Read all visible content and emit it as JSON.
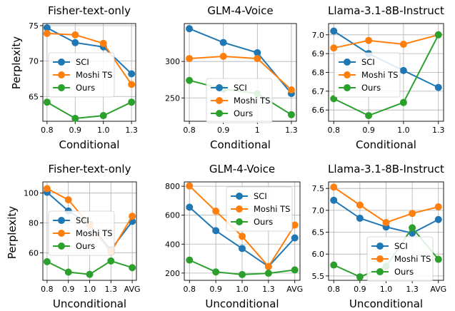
{
  "figure": {
    "ylabel": "Perplexity",
    "series_colors": {
      "SCI": "#1f77b4",
      "Moshi TS": "#ff7f0e",
      "Ours": "#2ca02c"
    }
  },
  "chart_data": [
    {
      "type": "line",
      "title": "Fisher-text-only",
      "xlabel": "Conditional",
      "ylabel": "Perplexity",
      "categories": [
        "0.8",
        "0.9",
        "1.0",
        "1.3"
      ],
      "ylim": [
        61.5,
        75.3
      ],
      "yticks": [
        {
          "v": 65,
          "label": "65"
        },
        {
          "v": 70,
          "label": "70"
        },
        {
          "v": 75,
          "label": "75"
        }
      ],
      "grid": true,
      "legend": "center-left",
      "series": [
        {
          "name": "SCI",
          "values": [
            74.7,
            72.6,
            72.0,
            68.2
          ]
        },
        {
          "name": "Moshi TS",
          "values": [
            73.9,
            73.7,
            72.5,
            66.7
          ]
        },
        {
          "name": "Ours",
          "values": [
            64.2,
            61.9,
            62.3,
            64.2
          ]
        }
      ]
    },
    {
      "type": "line",
      "title": "GLM-4-Voice",
      "xlabel": "Conditional",
      "ylabel": "",
      "categories": [
        "0.8",
        "0.9",
        "1",
        "1.3"
      ],
      "ylim": [
        218,
        352
      ],
      "yticks": [
        {
          "v": 250,
          "label": "250"
        },
        {
          "v": 300,
          "label": "300"
        }
      ],
      "grid": true,
      "legend": "lower-center",
      "series": [
        {
          "name": "SCI",
          "values": [
            345,
            326,
            312,
            256
          ]
        },
        {
          "name": "Moshi TS",
          "values": [
            304,
            307,
            304,
            261
          ]
        },
        {
          "name": "Ours",
          "values": [
            274,
            262,
            256,
            227
          ]
        }
      ]
    },
    {
      "type": "line",
      "title": "Llama-3.1-8B-Instruct",
      "xlabel": "Conditional",
      "ylabel": "",
      "categories": [
        "0.8",
        "0.9",
        "1.0",
        "1.3"
      ],
      "ylim": [
        6.54,
        7.06
      ],
      "yticks": [
        {
          "v": 6.6,
          "label": "6.6"
        },
        {
          "v": 6.7,
          "label": "6.7"
        },
        {
          "v": 6.8,
          "label": "6.8"
        },
        {
          "v": 6.9,
          "label": "6.9"
        },
        {
          "v": 7.0,
          "label": "7.0"
        }
      ],
      "grid": true,
      "legend": "center-left",
      "series": [
        {
          "name": "SCI",
          "values": [
            7.02,
            6.9,
            6.81,
            6.72
          ]
        },
        {
          "name": "Moshi TS",
          "values": [
            6.93,
            6.97,
            6.95,
            7.0
          ]
        },
        {
          "name": "Ours",
          "values": [
            6.66,
            6.57,
            6.64,
            7.0
          ]
        }
      ]
    },
    {
      "type": "line",
      "title": "Fisher-text-only",
      "xlabel": "Unconditional",
      "ylabel": "Perplexity",
      "categories": [
        "0.8",
        "0.9",
        "1.0",
        "1.3",
        "AVG"
      ],
      "ylim": [
        41.5,
        107.5
      ],
      "yticks": [
        {
          "v": 60,
          "label": "60"
        },
        {
          "v": 80,
          "label": "80"
        },
        {
          "v": 100,
          "label": "100"
        }
      ],
      "grid": true,
      "legend": "center-left",
      "series": [
        {
          "name": "SCI",
          "values": [
            100.5,
            88,
            79,
            62,
            81
          ]
        },
        {
          "name": "Moshi TS",
          "values": [
            103,
            95.5,
            78.5,
            60.5,
            84.5
          ]
        },
        {
          "name": "Ours",
          "values": [
            54,
            47,
            45.5,
            54.5,
            50
          ]
        }
      ]
    },
    {
      "type": "line",
      "title": "GLM-4-Voice",
      "xlabel": "Unconditional",
      "ylabel": "",
      "categories": [
        "0.8",
        "0.9",
        "1.0",
        "1.3",
        "AVG"
      ],
      "ylim": [
        150,
        830
      ],
      "yticks": [
        {
          "v": 200,
          "label": "200"
        },
        {
          "v": 400,
          "label": "400"
        },
        {
          "v": 600,
          "label": "600"
        },
        {
          "v": 800,
          "label": "800"
        }
      ],
      "grid": true,
      "legend": "upper-right",
      "series": [
        {
          "name": "SCI",
          "values": [
            655,
            493,
            370,
            245,
            443
          ]
        },
        {
          "name": "Moshi TS",
          "values": [
            802,
            628,
            454,
            245,
            532
          ]
        },
        {
          "name": "Ours",
          "values": [
            290,
            208,
            190,
            199,
            222
          ]
        }
      ]
    },
    {
      "type": "line",
      "title": "Llama-3.1-8B-Instruct",
      "xlabel": "Unconditional",
      "ylabel": "",
      "categories": [
        "0.8",
        "0.9",
        "1.0",
        "1.3",
        "AVG"
      ],
      "ylim": [
        5.4,
        7.65
      ],
      "yticks": [
        {
          "v": 5.5,
          "label": "5.5"
        },
        {
          "v": 6.0,
          "label": "6.0"
        },
        {
          "v": 6.5,
          "label": "6.5"
        },
        {
          "v": 7.0,
          "label": "7.0"
        },
        {
          "v": 7.5,
          "label": "7.5"
        }
      ],
      "grid": true,
      "legend": "lower-right",
      "series": [
        {
          "name": "SCI",
          "values": [
            7.23,
            6.82,
            6.62,
            6.48,
            6.79
          ]
        },
        {
          "name": "Moshi TS",
          "values": [
            7.53,
            7.12,
            6.72,
            6.93,
            7.08
          ]
        },
        {
          "name": "Ours",
          "values": [
            5.75,
            5.48,
            5.72,
            6.6,
            5.88
          ]
        }
      ]
    }
  ]
}
